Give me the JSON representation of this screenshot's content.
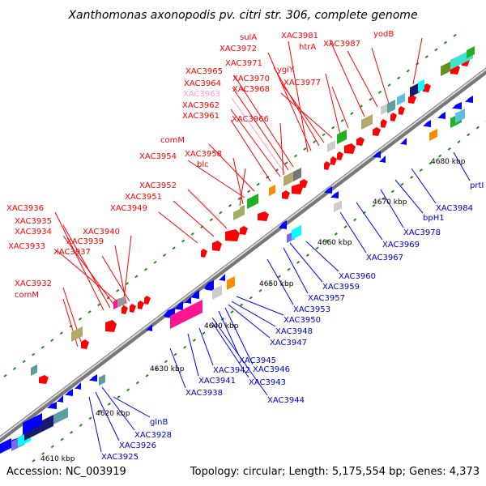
{
  "title": "Xanthomonas axonopodis pv. citri str. 306, complete genome",
  "accession": "Accession: NC_003919",
  "summary": "Topology: circular; Length: 5,175,554 bp; Genes: 4,373",
  "kbp_ticks": [
    "4610 kbp",
    "4620 kbp",
    "4630 kbp",
    "4640 kbp",
    "4650 kbp",
    "4660 kbp",
    "4670 kbp",
    "4680 kbp"
  ],
  "forward_labels": [
    "XAC3936",
    "XAC3935",
    "XAC3934",
    "XAC3933",
    "XAC3940",
    "XAC3939",
    "XAC3937",
    "XAC3932",
    "comM",
    "XAC3949",
    "XAC3951",
    "XAC3952",
    "XAC3954",
    "comM",
    "XAC3958",
    "blc",
    "XAC3961",
    "XAC3962",
    "XAC3963",
    "XAC3964",
    "XAC3965",
    "XAC3966",
    "XAC3968",
    "XAC3970",
    "XAC3971",
    "XAC3972",
    "sulA",
    "ygiY",
    "XAC3977",
    "XAC3981",
    "htrA",
    "XAC3987",
    "yodB"
  ],
  "reverse_labels": [
    "XAC3925",
    "XAC3926",
    "XAC3928",
    "glnB",
    "XAC3938",
    "XAC3941",
    "XAC3942",
    "XAC3943",
    "XAC3944",
    "XAC3945",
    "XAC3946",
    "XAC3947",
    "XAC3948",
    "XAC3950",
    "XAC3953",
    "XAC3957",
    "XAC3959",
    "XAC3960",
    "XAC3967",
    "XAC3969",
    "XAC3978",
    "bpH1",
    "XAC3984",
    "prtI"
  ],
  "colors": {
    "forward_gene": "#ff0000",
    "reverse_gene": "#0000ff",
    "highlight_pink": "#ff99cc",
    "backbone": "#999999",
    "tick": "#228b22"
  }
}
